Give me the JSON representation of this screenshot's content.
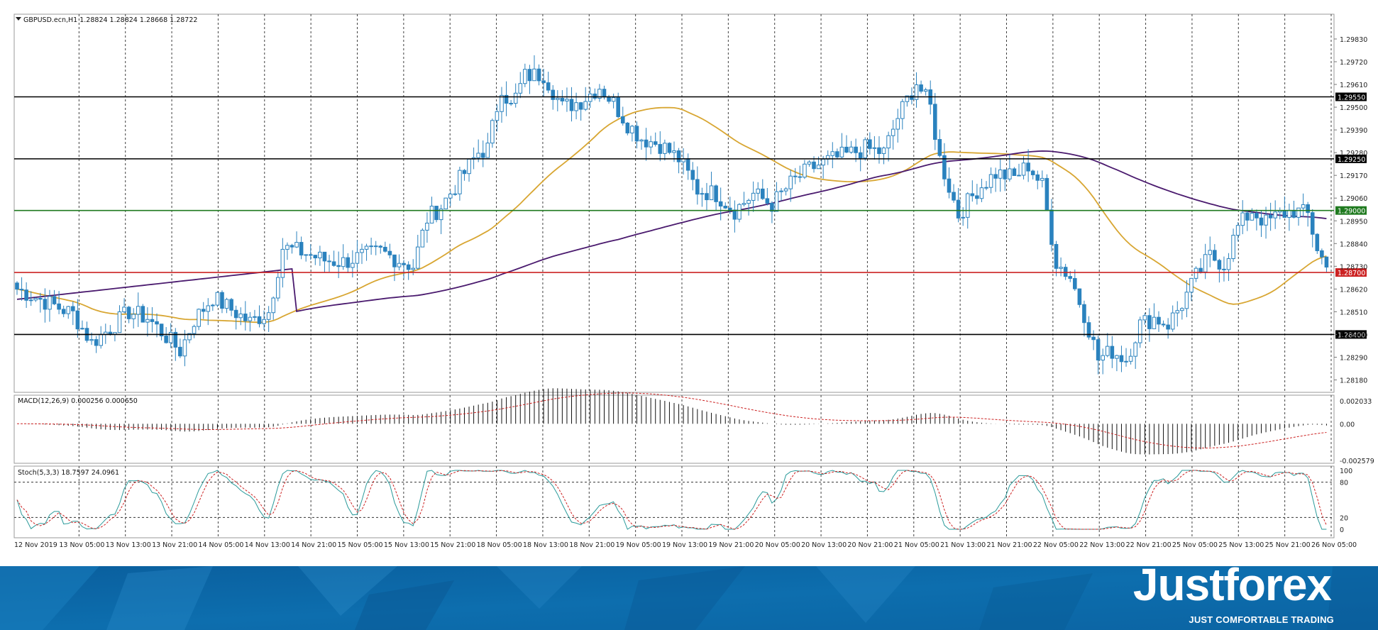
{
  "chart_data": {
    "type": "candlestick",
    "symbol_header": "GBPUSD.ecn,H1  1.28824 1.28824 1.28668 1.28722",
    "title": "",
    "ylim": [
      1.2812,
      1.2995
    ],
    "y_ticks": [
      "1.29830",
      "1.29720",
      "1.29610",
      "1.29500",
      "1.29390",
      "1.29280",
      "1.29170",
      "1.29060",
      "1.28950",
      "1.28840",
      "1.28730",
      "1.28620",
      "1.28510",
      "1.28400",
      "1.28290",
      "1.28180"
    ],
    "x_labels": [
      "12 Nov 2019",
      "13 Nov 05:00",
      "13 Nov 13:00",
      "13 Nov 21:00",
      "14 Nov 05:00",
      "14 Nov 13:00",
      "14 Nov 21:00",
      "15 Nov 05:00",
      "15 Nov 13:00",
      "15 Nov 21:00",
      "18 Nov 05:00",
      "18 Nov 13:00",
      "18 Nov 21:00",
      "19 Nov 05:00",
      "19 Nov 13:00",
      "19 Nov 21:00",
      "20 Nov 05:00",
      "20 Nov 13:00",
      "20 Nov 21:00",
      "21 Nov 05:00",
      "21 Nov 13:00",
      "21 Nov 21:00",
      "22 Nov 05:00",
      "22 Nov 13:00",
      "22 Nov 21:00",
      "25 Nov 05:00",
      "25 Nov 13:00",
      "25 Nov 21:00",
      "26 Nov 05:00"
    ],
    "horizontal_levels": [
      {
        "value": 1.2955,
        "label": "1.29550",
        "color": "#000000"
      },
      {
        "value": 1.2925,
        "label": "1.29250",
        "color": "#000000"
      },
      {
        "value": 1.29,
        "label": "1.29000",
        "color": "#1f7a1f"
      },
      {
        "value": 1.287,
        "label": "1.28700",
        "color": "#cc2222"
      },
      {
        "value": 1.284,
        "label": "1.28400",
        "color": "#000000"
      }
    ],
    "close_path": [
      [
        0,
        1.2862
      ],
      [
        6,
        1.2856
      ],
      [
        12,
        1.285
      ],
      [
        16,
        1.2836
      ],
      [
        20,
        1.2843
      ],
      [
        24,
        1.2851
      ],
      [
        28,
        1.2848
      ],
      [
        32,
        1.2839
      ],
      [
        35,
        1.2832
      ],
      [
        38,
        1.2847
      ],
      [
        42,
        1.2858
      ],
      [
        46,
        1.2852
      ],
      [
        50,
        1.2846
      ],
      [
        54,
        1.2851
      ],
      [
        57,
        1.2882
      ],
      [
        61,
        1.288
      ],
      [
        66,
        1.2876
      ],
      [
        70,
        1.2875
      ],
      [
        74,
        1.2878
      ],
      [
        78,
        1.288
      ],
      [
        82,
        1.2876
      ],
      [
        85,
        1.2873
      ],
      [
        88,
        1.2896
      ],
      [
        91,
        1.2902
      ],
      [
        95,
        1.2915
      ],
      [
        99,
        1.2928
      ],
      [
        101,
        1.293
      ],
      [
        104,
        1.296
      ],
      [
        106,
        1.295
      ],
      [
        109,
        1.2965
      ],
      [
        113,
        1.2966
      ],
      [
        117,
        1.295
      ],
      [
        121,
        1.2953
      ],
      [
        125,
        1.296
      ],
      [
        128,
        1.2952
      ],
      [
        131,
        1.2942
      ],
      [
        134,
        1.2935
      ],
      [
        138,
        1.2932
      ],
      [
        142,
        1.2925
      ],
      [
        146,
        1.291
      ],
      [
        150,
        1.2908
      ],
      [
        154,
        1.29
      ],
      [
        158,
        1.2908
      ],
      [
        162,
        1.2903
      ],
      [
        166,
        1.2913
      ],
      [
        170,
        1.292
      ],
      [
        174,
        1.2924
      ],
      [
        178,
        1.2927
      ],
      [
        182,
        1.293
      ],
      [
        186,
        1.2928
      ],
      [
        189,
        1.2945
      ],
      [
        193,
        1.2962
      ],
      [
        196,
        1.295
      ],
      [
        198,
        1.2925
      ],
      [
        202,
        1.2898
      ],
      [
        206,
        1.291
      ],
      [
        210,
        1.2918
      ],
      [
        214,
        1.2916
      ],
      [
        217,
        1.2922
      ],
      [
        220,
        1.2912
      ],
      [
        223,
        1.2875
      ],
      [
        226,
        1.2868
      ],
      [
        229,
        1.285
      ],
      [
        232,
        1.2828
      ],
      [
        235,
        1.2832
      ],
      [
        238,
        1.2828
      ],
      [
        241,
        1.2845
      ],
      [
        244,
        1.2848
      ],
      [
        247,
        1.2845
      ],
      [
        250,
        1.2855
      ],
      [
        253,
        1.2868
      ],
      [
        256,
        1.2878
      ],
      [
        259,
        1.2874
      ],
      [
        262,
        1.2892
      ],
      [
        265,
        1.29
      ],
      [
        268,
        1.2894
      ],
      [
        271,
        1.2898
      ],
      [
        274,
        1.29
      ],
      [
        277,
        1.2898
      ],
      [
        279,
        1.2882
      ],
      [
        281,
        1.2872
      ]
    ],
    "indicators": {
      "macd": {
        "label": "MACD(12,26,9) 0.000256 0.000650",
        "y_ticks": [
          "0.002033",
          "0.00",
          "-0.002579"
        ]
      },
      "stoch": {
        "label": "Stoch(5,3,3) 18.7597 24.0961",
        "y_ticks": [
          "100",
          "80",
          "20",
          "0"
        ]
      }
    },
    "grid": "vertical-dashed",
    "legend": "none"
  },
  "brand": {
    "name": "Justforex",
    "tagline": "JUST COMFORTABLE TRADING"
  },
  "colors": {
    "bull_candle": "#2a82be",
    "bear_candle": "#2a82be",
    "ma_fast": "#d8a632",
    "ma_slow": "#4a1a6e",
    "banner_blue": "#0d6eae"
  }
}
